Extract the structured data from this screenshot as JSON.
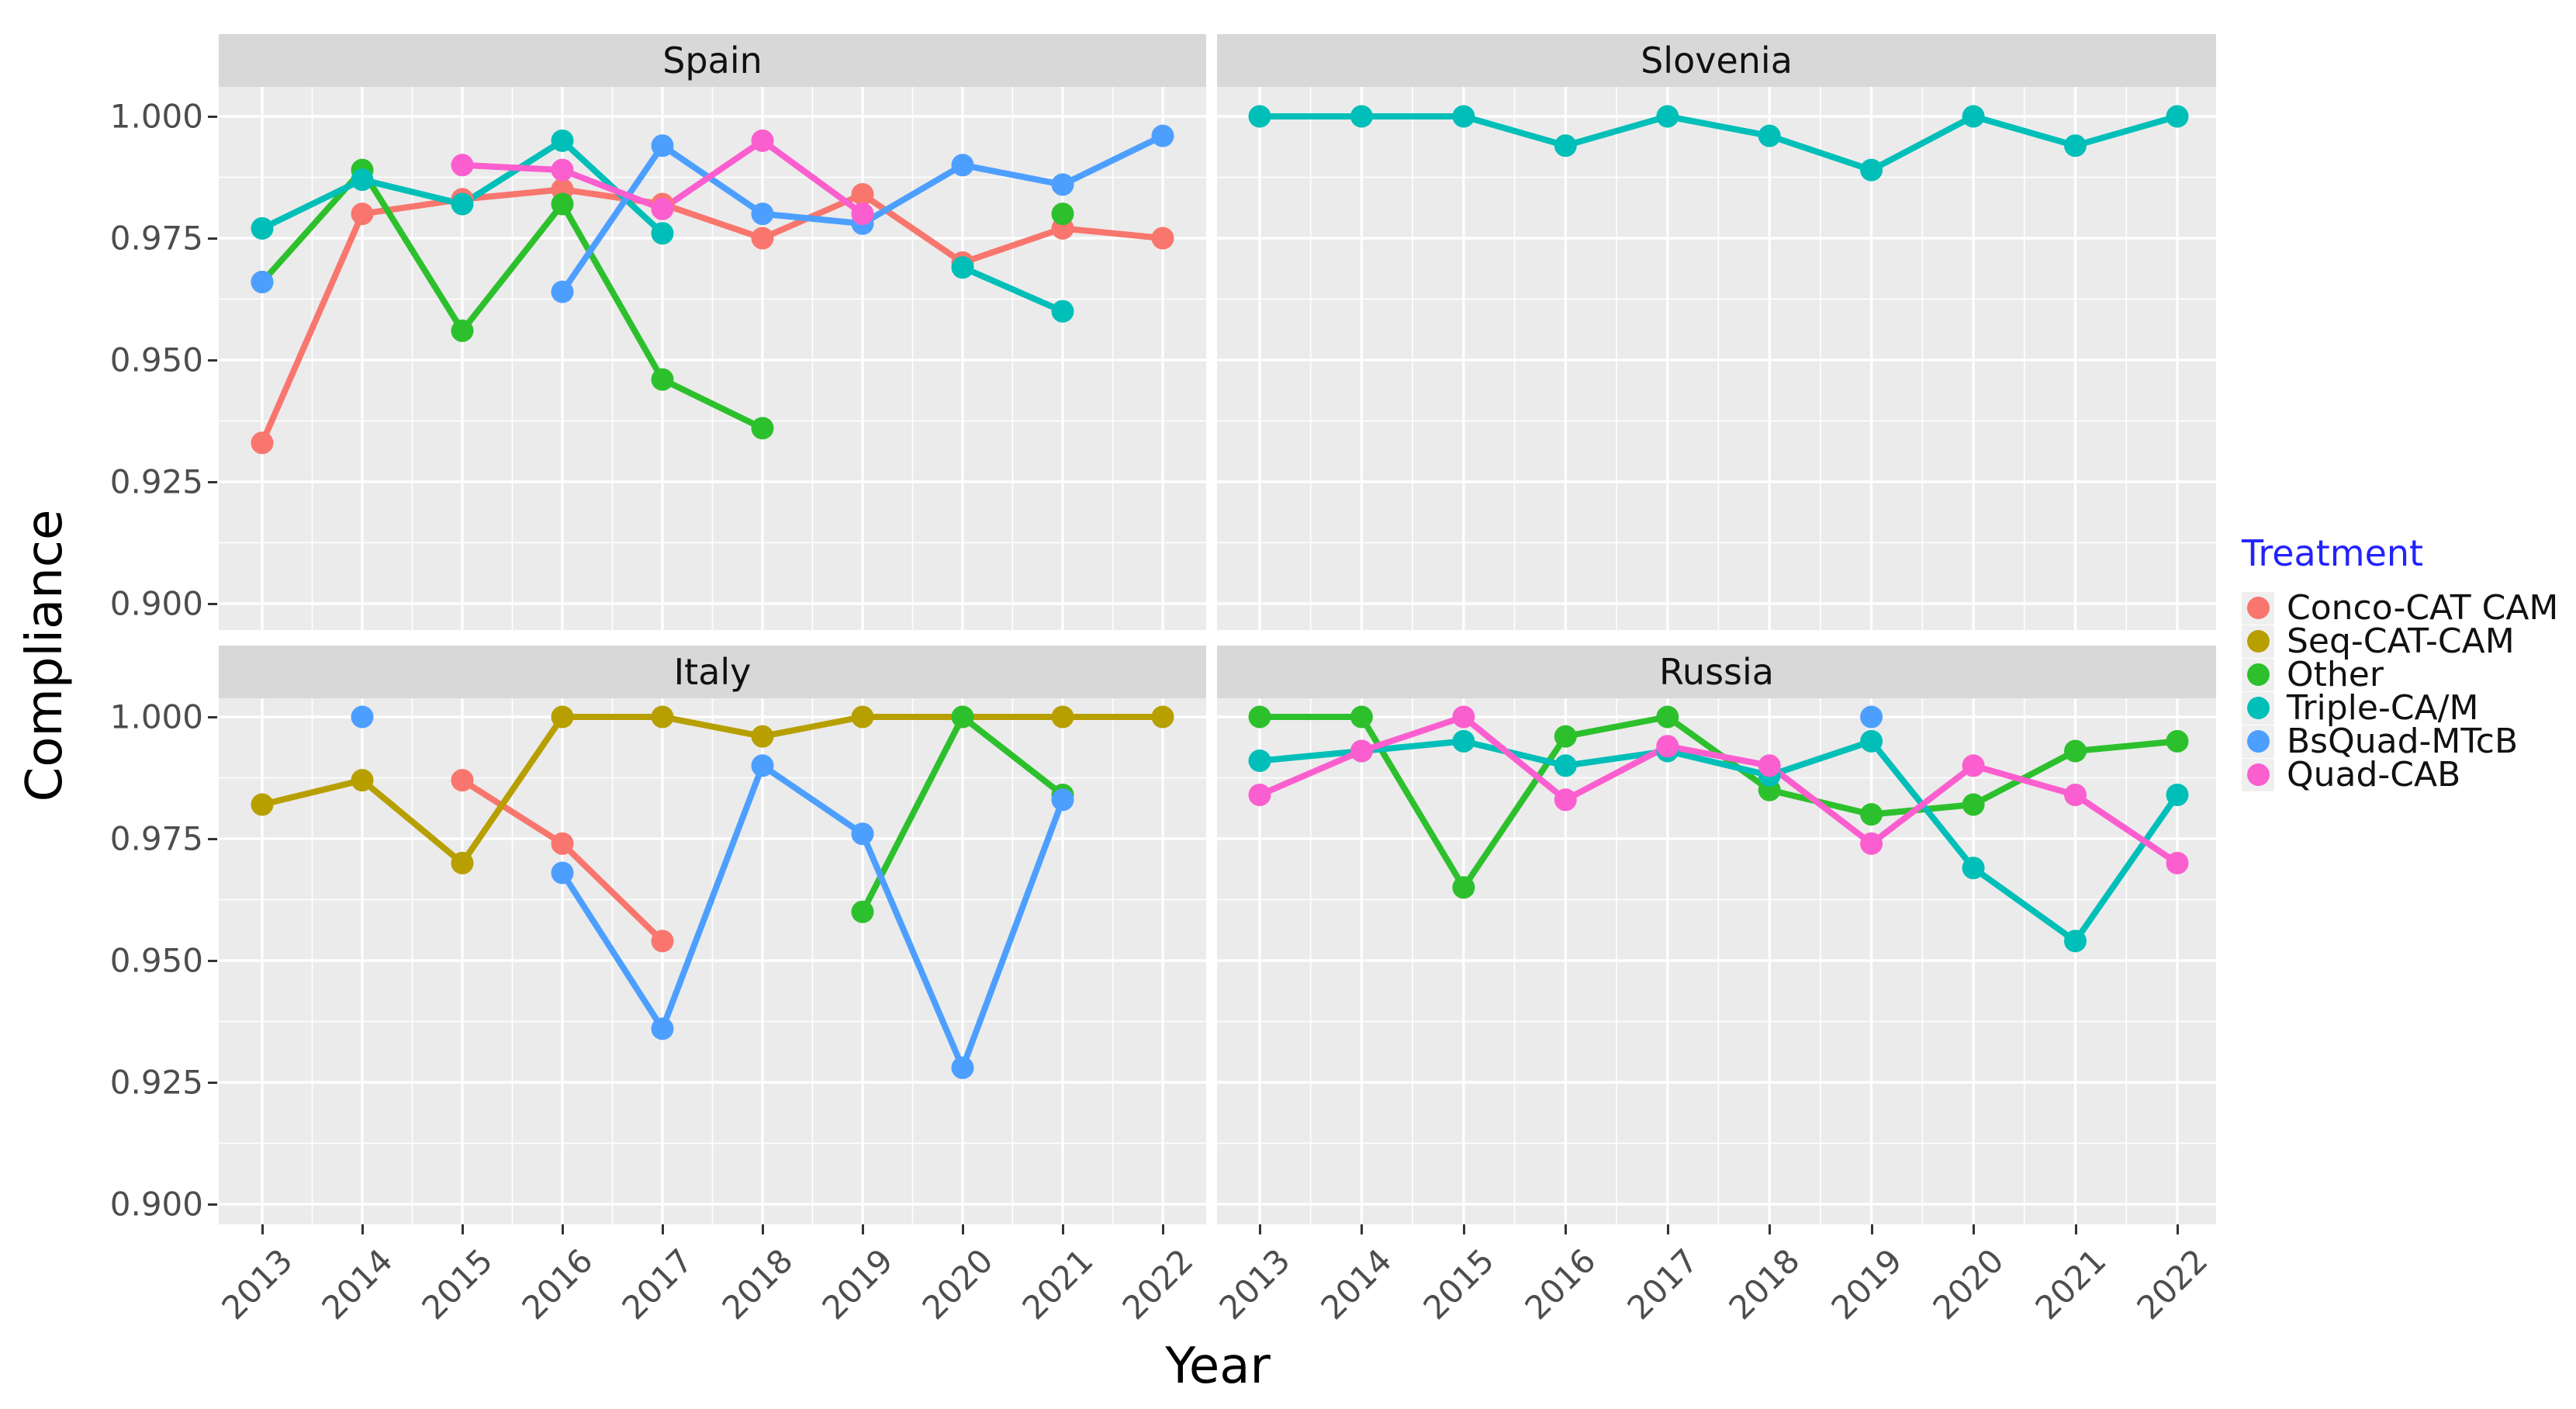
{
  "figure": {
    "y_axis_title": "Compliance",
    "x_axis_title": "Year",
    "y_tick_labels": [
      "1.000",
      "0.975",
      "0.950",
      "0.925",
      "0.900"
    ],
    "x_tick_labels": [
      "2013",
      "2014",
      "2015",
      "2016",
      "2017",
      "2018",
      "2019",
      "2020",
      "2021",
      "2022"
    ],
    "legend": {
      "title": "Treatment",
      "items": [
        {
          "label": "Conco-CAT CAM",
          "color": "#F8766D"
        },
        {
          "label": "Seq-CAT-CAM",
          "color": "#B79F00"
        },
        {
          "label": "Other",
          "color": "#2DC02D"
        },
        {
          "label": "Triple-CA/M",
          "color": "#00BFB8"
        },
        {
          "label": "BsQuad-MTcB",
          "color": "#4D9FFF"
        },
        {
          "label": "Quad-CAB",
          "color": "#FB5ECF"
        }
      ]
    },
    "colors": {
      "panel_background": "#EBEBEB",
      "strip_background": "#D8D8D8",
      "gridline": "#FFFFFF",
      "tick_label": "#4D4D4D",
      "legend_title": "#2222FF"
    }
  },
  "chart_data": {
    "type": "line",
    "title": "",
    "xlabel": "Year",
    "ylabel": "Compliance",
    "x": [
      2013,
      2014,
      2015,
      2016,
      2017,
      2018,
      2019,
      2020,
      2021,
      2022
    ],
    "ylim": [
      0.895,
      1.006
    ],
    "y_ticks": [
      1.0,
      0.975,
      0.95,
      0.925,
      0.9
    ],
    "grid": true,
    "legend_position": "right",
    "legend_title": "Treatment",
    "series_order": [
      "Conco-CAT CAM",
      "Seq-CAT-CAM",
      "Other",
      "Triple-CA/M",
      "BsQuad-MTcB",
      "Quad-CAB"
    ],
    "facets": [
      {
        "title": "Spain",
        "series": [
          {
            "name": "Conco-CAT CAM",
            "points": [
              [
                2013,
                0.933
              ],
              [
                2014,
                0.98
              ],
              [
                2015,
                0.983
              ],
              [
                2016,
                0.985
              ],
              [
                2017,
                0.982
              ],
              [
                2018,
                0.975
              ],
              [
                2019,
                0.984
              ],
              [
                2020,
                0.97
              ],
              [
                2021,
                0.977
              ],
              [
                2022,
                0.975
              ]
            ]
          },
          {
            "name": "Other",
            "points": [
              [
                2013,
                0.966
              ],
              [
                2014,
                0.989
              ],
              [
                2015,
                0.956
              ],
              [
                2016,
                0.982
              ],
              [
                2017,
                0.946
              ],
              [
                2018,
                0.936
              ],
              [
                2021,
                0.98
              ]
            ]
          },
          {
            "name": "Triple-CA/M",
            "points": [
              [
                2013,
                0.977
              ],
              [
                2014,
                0.987
              ],
              [
                2015,
                0.982
              ],
              [
                2016,
                0.995
              ],
              [
                2017,
                0.976
              ],
              [
                2020,
                0.969
              ],
              [
                2021,
                0.96
              ]
            ]
          },
          {
            "name": "BsQuad-MTcB",
            "points": [
              [
                2013,
                0.966
              ],
              [
                2016,
                0.964
              ],
              [
                2017,
                0.994
              ],
              [
                2018,
                0.98
              ],
              [
                2019,
                0.978
              ],
              [
                2020,
                0.99
              ],
              [
                2021,
                0.986
              ],
              [
                2022,
                0.996
              ]
            ]
          },
          {
            "name": "Quad-CAB",
            "points": [
              [
                2015,
                0.99
              ],
              [
                2016,
                0.989
              ],
              [
                2017,
                0.981
              ],
              [
                2018,
                0.995
              ],
              [
                2019,
                0.98
              ]
            ]
          }
        ]
      },
      {
        "title": "Slovenia",
        "series": [
          {
            "name": "Triple-CA/M",
            "points": [
              [
                2013,
                1.0
              ],
              [
                2014,
                1.0
              ],
              [
                2015,
                1.0
              ],
              [
                2016,
                0.994
              ],
              [
                2017,
                1.0
              ],
              [
                2018,
                0.996
              ],
              [
                2019,
                0.989
              ],
              [
                2020,
                1.0
              ],
              [
                2021,
                0.994
              ],
              [
                2022,
                1.0
              ]
            ]
          }
        ]
      },
      {
        "title": "Italy",
        "series": [
          {
            "name": "Conco-CAT CAM",
            "points": [
              [
                2015,
                0.987
              ],
              [
                2016,
                0.974
              ],
              [
                2017,
                0.954
              ]
            ]
          },
          {
            "name": "Seq-CAT-CAM",
            "points": [
              [
                2013,
                0.982
              ],
              [
                2014,
                0.987
              ],
              [
                2015,
                0.97
              ],
              [
                2016,
                1.0
              ],
              [
                2017,
                1.0
              ],
              [
                2018,
                0.996
              ],
              [
                2019,
                1.0
              ],
              [
                2020,
                1.0
              ],
              [
                2021,
                1.0
              ],
              [
                2022,
                1.0
              ]
            ]
          },
          {
            "name": "Other",
            "points": [
              [
                2019,
                0.96
              ],
              [
                2020,
                1.0
              ],
              [
                2021,
                0.984
              ]
            ]
          },
          {
            "name": "BsQuad-MTcB",
            "points": [
              [
                2014,
                1.0
              ],
              [
                2016,
                0.968
              ],
              [
                2017,
                0.936
              ],
              [
                2018,
                0.99
              ],
              [
                2019,
                0.976
              ],
              [
                2020,
                0.928
              ],
              [
                2021,
                0.983
              ]
            ]
          }
        ]
      },
      {
        "title": "Russia",
        "series": [
          {
            "name": "Other",
            "points": [
              [
                2013,
                1.0
              ],
              [
                2014,
                1.0
              ],
              [
                2015,
                0.965
              ],
              [
                2016,
                0.996
              ],
              [
                2017,
                1.0
              ],
              [
                2018,
                0.985
              ],
              [
                2019,
                0.98
              ],
              [
                2020,
                0.982
              ],
              [
                2021,
                0.993
              ],
              [
                2022,
                0.995
              ]
            ]
          },
          {
            "name": "Triple-CA/M",
            "points": [
              [
                2013,
                0.991
              ],
              [
                2014,
                0.993
              ],
              [
                2015,
                0.995
              ],
              [
                2016,
                0.99
              ],
              [
                2017,
                0.993
              ],
              [
                2018,
                0.988
              ],
              [
                2019,
                0.995
              ],
              [
                2020,
                0.969
              ],
              [
                2021,
                0.954
              ],
              [
                2022,
                0.984
              ]
            ]
          },
          {
            "name": "BsQuad-MTcB",
            "points": [
              [
                2019,
                1.0
              ]
            ]
          },
          {
            "name": "Quad-CAB",
            "points": [
              [
                2013,
                0.984
              ],
              [
                2014,
                0.993
              ],
              [
                2015,
                1.0
              ],
              [
                2016,
                0.983
              ],
              [
                2017,
                0.994
              ],
              [
                2018,
                0.99
              ],
              [
                2019,
                0.974
              ],
              [
                2020,
                0.99
              ],
              [
                2021,
                0.984
              ],
              [
                2022,
                0.97
              ]
            ]
          }
        ]
      }
    ]
  }
}
